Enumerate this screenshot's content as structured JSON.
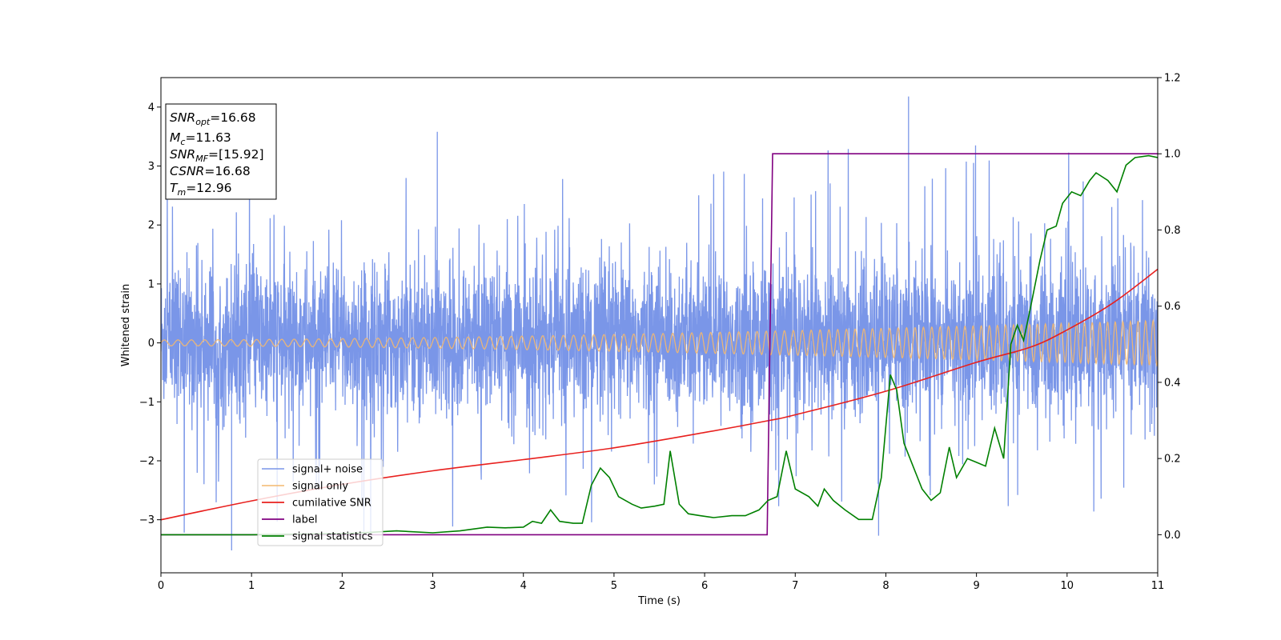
{
  "chart_data": {
    "type": "line",
    "xlabel": "Time (s)",
    "ylabel": "Whitened strain",
    "xlim": [
      0,
      11
    ],
    "ylim": [
      -3.9,
      4.5
    ],
    "y2lim": [
      -0.1,
      1.2
    ],
    "x_ticks": [
      "0",
      "1",
      "2",
      "3",
      "4",
      "5",
      "6",
      "7",
      "8",
      "9",
      "10",
      "11"
    ],
    "y_ticks": [
      "−3",
      "−2",
      "−1",
      "0",
      "1",
      "2",
      "3",
      "4"
    ],
    "y2_ticks": [
      "0.0",
      "0.2",
      "0.4",
      "0.6",
      "0.8",
      "1.0",
      "1.2"
    ],
    "grid": false,
    "legend_position": "lower-left",
    "info_box": {
      "lines": [
        {
          "var": "SNR",
          "sub": "opt",
          "value": "=16.68"
        },
        {
          "var": "M",
          "sub": "c",
          "value": "=11.63"
        },
        {
          "var": "SNR",
          "sub": "MF",
          "value": "=[15.92]"
        },
        {
          "var": "CSNR",
          "sub": "",
          "value": "=16.68"
        },
        {
          "var": "T",
          "sub": "m",
          "value": "=12.96"
        }
      ]
    },
    "series": [
      {
        "name": "signal+ noise",
        "color": "#7a96e8",
        "axis": "left",
        "style": "noise",
        "envelope": {
          "typical_low": -1.4,
          "typical_high": 1.5,
          "max": 4.18,
          "min": -3.52
        }
      },
      {
        "name": "signal only",
        "color": "#f4b86e",
        "axis": "left",
        "style": "chirp",
        "amplitude": {
          "start": 0.05,
          "end": 0.38
        }
      },
      {
        "name": "cumilative SNR",
        "color": "#e8201e",
        "axis": "left",
        "x": [
          0,
          1,
          2,
          3,
          4,
          5,
          6,
          6.7,
          7,
          8,
          9,
          9.6,
          10,
          10.5,
          11
        ],
        "y": [
          -3.0,
          -2.68,
          -2.4,
          -2.17,
          -1.98,
          -1.78,
          -1.52,
          -1.32,
          -1.22,
          -0.82,
          -0.33,
          -0.07,
          0.22,
          0.67,
          1.25
        ]
      },
      {
        "name": "label",
        "color": "#800080",
        "axis": "right",
        "x": [
          0,
          6.69,
          6.75,
          11
        ],
        "y": [
          0,
          0,
          1,
          1
        ]
      },
      {
        "name": "signal statistics",
        "color": "#008000",
        "axis": "right",
        "x": [
          0,
          1,
          2,
          2.3,
          2.6,
          3,
          3.3,
          3.6,
          3.8,
          4.0,
          4.1,
          4.2,
          4.3,
          4.4,
          4.55,
          4.65,
          4.75,
          4.85,
          4.95,
          5.05,
          5.2,
          5.3,
          5.45,
          5.55,
          5.62,
          5.72,
          5.82,
          5.95,
          6.1,
          6.3,
          6.45,
          6.6,
          6.7,
          6.8,
          6.9,
          7.0,
          7.15,
          7.25,
          7.32,
          7.42,
          7.55,
          7.7,
          7.85,
          7.95,
          8.05,
          8.12,
          8.2,
          8.3,
          8.4,
          8.5,
          8.6,
          8.7,
          8.78,
          8.9,
          9.0,
          9.1,
          9.2,
          9.3,
          9.38,
          9.45,
          9.52,
          9.6,
          9.7,
          9.78,
          9.88,
          9.95,
          10.05,
          10.15,
          10.25,
          10.32,
          10.45,
          10.55,
          10.65,
          10.75,
          10.9,
          11.0
        ],
        "y": [
          0,
          0.0,
          0.003,
          0.006,
          0.01,
          0.005,
          0.01,
          0.02,
          0.018,
          0.02,
          0.035,
          0.03,
          0.065,
          0.035,
          0.03,
          0.03,
          0.13,
          0.175,
          0.15,
          0.1,
          0.08,
          0.07,
          0.075,
          0.08,
          0.22,
          0.08,
          0.055,
          0.05,
          0.045,
          0.05,
          0.05,
          0.065,
          0.09,
          0.1,
          0.22,
          0.12,
          0.1,
          0.075,
          0.12,
          0.09,
          0.065,
          0.04,
          0.04,
          0.15,
          0.42,
          0.38,
          0.24,
          0.18,
          0.12,
          0.09,
          0.11,
          0.23,
          0.15,
          0.2,
          0.19,
          0.18,
          0.28,
          0.2,
          0.5,
          0.55,
          0.51,
          0.6,
          0.72,
          0.8,
          0.81,
          0.87,
          0.9,
          0.89,
          0.93,
          0.95,
          0.93,
          0.9,
          0.97,
          0.99,
          0.995,
          0.99
        ]
      }
    ]
  }
}
